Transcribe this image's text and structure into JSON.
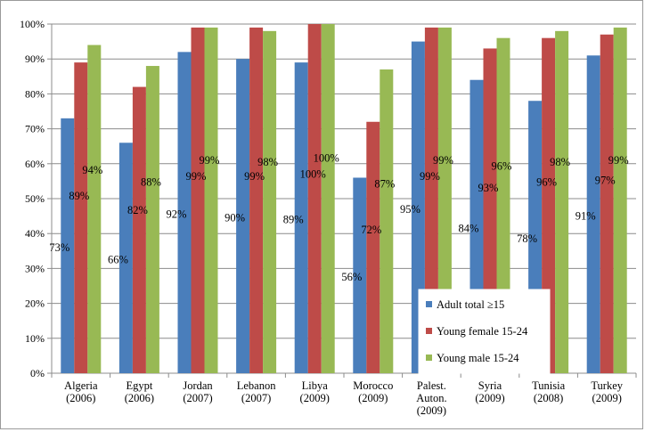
{
  "chart_data": {
    "type": "bar",
    "categories": [
      [
        "Algeria",
        "(2006)"
      ],
      [
        "Egypt",
        "(2006)"
      ],
      [
        "Jordan",
        "(2007)"
      ],
      [
        "Lebanon",
        "(2007)"
      ],
      [
        "Libya",
        "(2009)"
      ],
      [
        "Morocco",
        "(2009)"
      ],
      [
        "Palest.",
        "Auton.",
        "(2009)"
      ],
      [
        "Syria",
        "(2009)"
      ],
      [
        "Tunisia",
        "(2008)"
      ],
      [
        "Turkey",
        "(2009)"
      ]
    ],
    "series": [
      {
        "name": "Adult total ≥15",
        "color": "#4a7ebb",
        "values": [
          73,
          66,
          92,
          90,
          89,
          56,
          95,
          84,
          78,
          91
        ]
      },
      {
        "name": "Young female 15-24",
        "color": "#be4b48",
        "values": [
          89,
          82,
          99,
          99,
          100,
          72,
          99,
          93,
          96,
          97
        ]
      },
      {
        "name": "Young male 15-24",
        "color": "#98b954",
        "values": [
          94,
          88,
          99,
          98,
          100,
          87,
          99,
          96,
          98,
          99
        ]
      }
    ],
    "ylim": [
      0,
      100
    ],
    "yticks": [
      "0%",
      "10%",
      "20%",
      "30%",
      "40%",
      "50%",
      "60%",
      "70%",
      "80%",
      "90%",
      "100%"
    ],
    "grid": true,
    "legend_position": "bottom-right inside plot",
    "value_suffix": "%"
  }
}
